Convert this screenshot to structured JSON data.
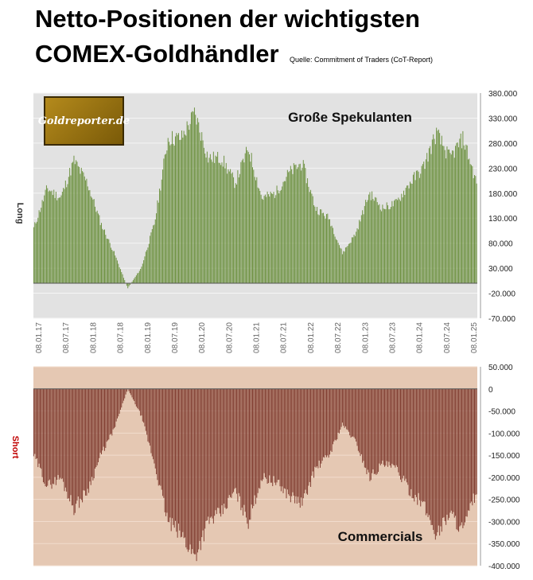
{
  "header": {
    "title_line1": "Netto-Positionen der wichtigsten",
    "title_line2": "COMEX-Goldhändler",
    "source": "Quelle: Commitment of Traders (CoT-Report)"
  },
  "logo": {
    "text": "Goldreporter.de"
  },
  "colors": {
    "top_bar": "#6a8f3c",
    "bottom_bar": "#7e3a2e",
    "bottom_bg": "#e5c8b3",
    "top_bg": "#e2e2e2"
  },
  "chart_data": [
    {
      "type": "bar",
      "title": "Große Spekulanten",
      "ylabel": "Long",
      "ylim": [
        -70000,
        380000
      ],
      "yticks": [
        "380.000",
        "330.000",
        "280.000",
        "230.000",
        "180.000",
        "130.000",
        "80.000",
        "30.000",
        "-20.000",
        "-70.000"
      ],
      "ytick_values": [
        380000,
        330000,
        280000,
        230000,
        180000,
        130000,
        80000,
        30000,
        -20000,
        -70000
      ],
      "categories": [
        "08.01.17",
        "08.07.17",
        "08.01.18",
        "08.07.18",
        "08.01.19",
        "08.07.19",
        "08.01.20",
        "08.07.20",
        "08.01.21",
        "08.07.21",
        "08.01.22",
        "08.07.22",
        "08.01.23",
        "08.07.23",
        "08.01.24",
        "08.07.24",
        "08.01.25"
      ],
      "x": [
        "2017-01",
        "2017-04",
        "2017-07",
        "2017-10",
        "2018-01",
        "2018-04",
        "2018-07",
        "2018-10",
        "2019-01",
        "2019-04",
        "2019-07",
        "2019-10",
        "2020-01",
        "2020-04",
        "2020-07",
        "2020-10",
        "2021-01",
        "2021-04",
        "2021-07",
        "2021-10",
        "2022-01",
        "2022-04",
        "2022-07",
        "2022-10",
        "2023-01",
        "2023-04",
        "2023-07",
        "2023-10",
        "2024-01",
        "2024-04",
        "2024-07",
        "2024-10",
        "2025-01",
        "2025-03"
      ],
      "values": [
        110000,
        190000,
        170000,
        245000,
        200000,
        120000,
        60000,
        -10000,
        30000,
        120000,
        290000,
        290000,
        340000,
        250000,
        250000,
        200000,
        270000,
        170000,
        180000,
        220000,
        240000,
        150000,
        130000,
        60000,
        100000,
        180000,
        150000,
        160000,
        200000,
        230000,
        300000,
        250000,
        290000,
        200000
      ]
    },
    {
      "type": "bar",
      "title": "Commercials",
      "ylabel": "Short",
      "ylim": [
        -400000,
        50000
      ],
      "yticks": [
        "50.000",
        "0",
        "-50.000",
        "-100.000",
        "-150.000",
        "-200.000",
        "-250.000",
        "-300.000",
        "-350.000",
        "-400.000"
      ],
      "ytick_values": [
        50000,
        0,
        -50000,
        -100000,
        -150000,
        -200000,
        -250000,
        -300000,
        -350000,
        -400000
      ],
      "x": [
        "2017-01",
        "2017-04",
        "2017-07",
        "2017-10",
        "2018-01",
        "2018-04",
        "2018-07",
        "2018-10",
        "2019-01",
        "2019-04",
        "2019-07",
        "2019-10",
        "2020-01",
        "2020-04",
        "2020-07",
        "2020-10",
        "2021-01",
        "2021-04",
        "2021-07",
        "2021-10",
        "2022-01",
        "2022-04",
        "2022-07",
        "2022-10",
        "2023-01",
        "2023-04",
        "2023-07",
        "2023-10",
        "2024-01",
        "2024-04",
        "2024-07",
        "2024-10",
        "2025-01",
        "2025-03"
      ],
      "values": [
        -150000,
        -220000,
        -200000,
        -270000,
        -230000,
        -150000,
        -90000,
        0,
        -60000,
        -170000,
        -300000,
        -330000,
        -380000,
        -300000,
        -280000,
        -230000,
        -300000,
        -200000,
        -210000,
        -240000,
        -260000,
        -180000,
        -150000,
        -80000,
        -120000,
        -200000,
        -170000,
        -180000,
        -230000,
        -260000,
        -330000,
        -280000,
        -320000,
        -230000
      ]
    }
  ]
}
